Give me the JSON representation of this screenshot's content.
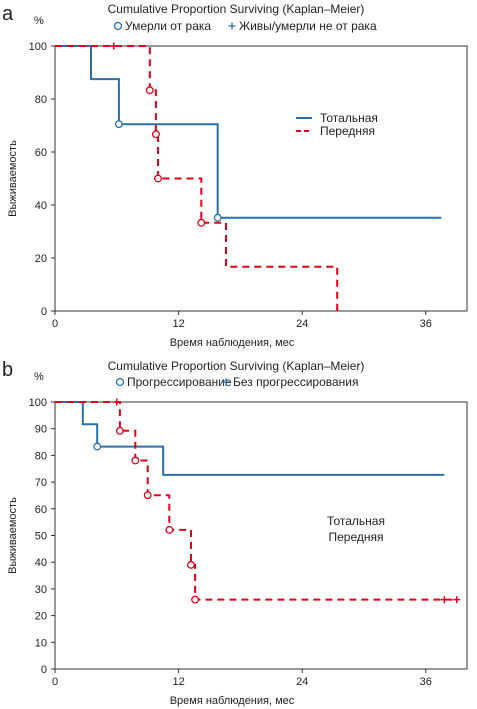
{
  "chart_data": [
    {
      "type": "line",
      "panel_label": "a",
      "title": "Cumulative Proportion Surviving (Kaplan–Meier)",
      "xlabel": "Время наблюдения, мес",
      "ylabel": "Выживаемость",
      "yunit": "%",
      "xlim": [
        0,
        40
      ],
      "ylim": [
        0,
        100
      ],
      "xticks": [
        0,
        12,
        24,
        36
      ],
      "yticks": [
        0,
        20,
        40,
        60,
        80,
        100
      ],
      "grid": false,
      "marker_legend": [
        {
          "label": "Умерли от рака",
          "marker": "circle"
        },
        {
          "label": "Живы/умерли не от рака",
          "marker": "plus"
        }
      ],
      "series_legend": {
        "placement": "right-middle",
        "entries": [
          "Тотальная",
          "Передняя"
        ]
      },
      "series": [
        {
          "name": "Тотальная",
          "color": "#2a6fa8",
          "style": "solid",
          "steps": [
            [
              0,
              100
            ],
            [
              3.5,
              100
            ],
            [
              3.5,
              87.5
            ],
            [
              6.2,
              87.5
            ],
            [
              6.2,
              70.5
            ],
            [
              15.8,
              70.5
            ],
            [
              15.8,
              35.2
            ],
            [
              37.5,
              35.2
            ]
          ],
          "events": [
            [
              6.2,
              70.5
            ],
            [
              15.8,
              35.2
            ]
          ],
          "censored": []
        },
        {
          "name": "Передняя",
          "color": "#e3001b",
          "style": "dashed",
          "steps": [
            [
              0,
              100
            ],
            [
              9.2,
              100
            ],
            [
              9.2,
              83.3
            ],
            [
              9.8,
              83.3
            ],
            [
              9.8,
              66.7
            ],
            [
              10,
              66.7
            ],
            [
              10,
              50
            ],
            [
              14.2,
              50
            ],
            [
              14.2,
              33.3
            ],
            [
              16.6,
              33.3
            ],
            [
              16.6,
              16.7
            ],
            [
              27.4,
              16.7
            ],
            [
              27.4,
              0
            ]
          ],
          "events": [
            [
              9.2,
              83.3
            ],
            [
              9.8,
              66.7
            ],
            [
              10,
              50
            ],
            [
              14.2,
              33.3
            ]
          ],
          "censored": [
            [
              5.7,
              100
            ]
          ]
        }
      ]
    },
    {
      "type": "line",
      "panel_label": "b",
      "title": "Cumulative Proportion Surviving (Kaplan–Meier)",
      "xlabel": "Время наблюдения, мес",
      "ylabel": "Выживаемость",
      "yunit": "%",
      "xlim": [
        0,
        40
      ],
      "ylim": [
        0,
        100
      ],
      "xticks": [
        0,
        12,
        24,
        36
      ],
      "yticks": [
        0,
        10,
        20,
        30,
        40,
        50,
        60,
        70,
        80,
        90,
        100
      ],
      "grid": false,
      "marker_legend": [
        {
          "label": "Прогрессирование",
          "marker": "circle"
        },
        {
          "label": "Без прогрессирования",
          "marker": "plus"
        }
      ],
      "series_legend": {
        "placement": "right-middle",
        "entries": [
          "Тотальная",
          "Передняя"
        ]
      },
      "series": [
        {
          "name": "Тотальная",
          "color": "#2a6fa8",
          "style": "solid",
          "steps": [
            [
              0,
              100
            ],
            [
              2.7,
              100
            ],
            [
              2.7,
              91.7
            ],
            [
              4.1,
              91.7
            ],
            [
              4.1,
              83.3
            ],
            [
              10.5,
              83.3
            ],
            [
              10.5,
              72.7
            ],
            [
              37.8,
              72.7
            ]
          ],
          "events": [
            [
              4.1,
              83.3
            ]
          ],
          "censored": []
        },
        {
          "name": "Передняя",
          "color": "#e3001b",
          "style": "dashed",
          "steps": [
            [
              0,
              100
            ],
            [
              6.3,
              100
            ],
            [
              6.3,
              89.2
            ],
            [
              7.8,
              89.2
            ],
            [
              7.8,
              78.1
            ],
            [
              9,
              78.1
            ],
            [
              9,
              65.1
            ],
            [
              11.1,
              65.1
            ],
            [
              11.1,
              52.1
            ],
            [
              13.2,
              52.1
            ],
            [
              13.2,
              39
            ],
            [
              13.6,
              39
            ],
            [
              13.6,
              26
            ],
            [
              39,
              26
            ]
          ],
          "events": [
            [
              6.3,
              89.2
            ],
            [
              7.8,
              78.1
            ],
            [
              9,
              65.1
            ],
            [
              11.1,
              52.1
            ],
            [
              13.2,
              39
            ],
            [
              13.6,
              26
            ]
          ],
          "censored": [
            [
              6,
              100
            ],
            [
              37.8,
              26
            ],
            [
              39,
              26
            ]
          ]
        }
      ]
    }
  ]
}
